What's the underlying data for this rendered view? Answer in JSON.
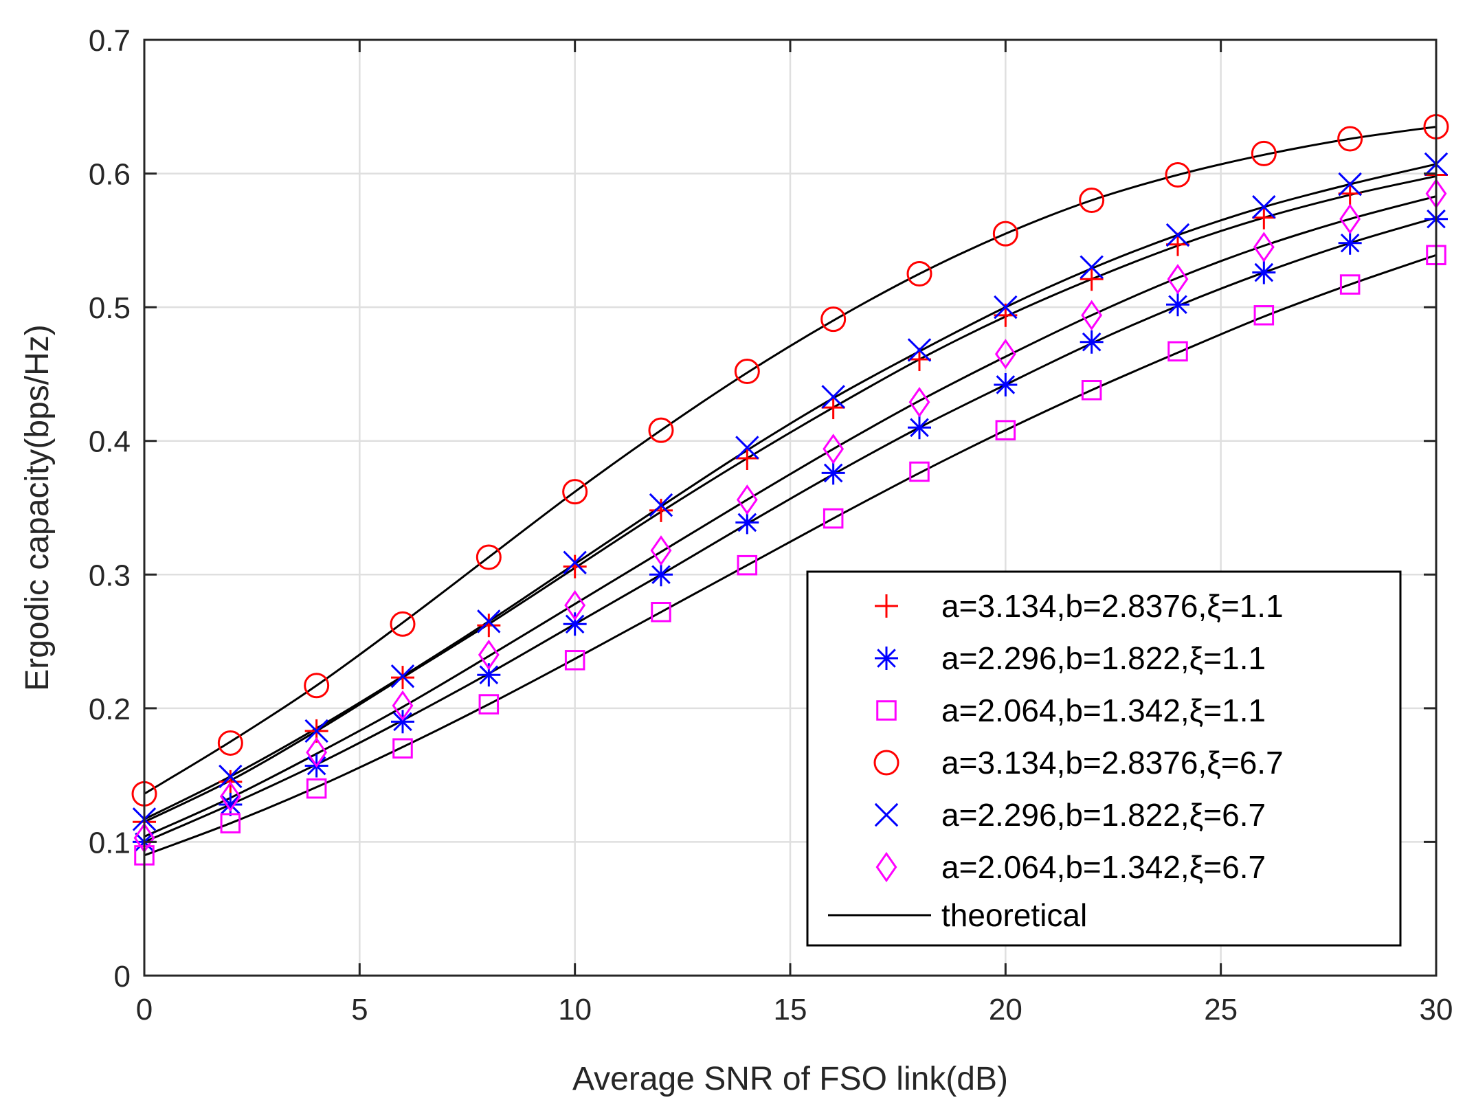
{
  "chart_data": {
    "type": "line",
    "xlabel": "Average SNR of FSO link(dB)",
    "ylabel": "Ergodic capacity(bps/Hz)",
    "xlim": [
      0,
      30
    ],
    "ylim": [
      0,
      0.7
    ],
    "xticks": [
      0,
      5,
      10,
      15,
      20,
      25,
      30
    ],
    "xtick_labels": [
      "0",
      "5",
      "10",
      "15",
      "20",
      "25",
      "30"
    ],
    "yticks": [
      0,
      0.1,
      0.2,
      0.3,
      0.4,
      0.5,
      0.6,
      0.7
    ],
    "ytick_labels": [
      "0",
      "0.1",
      "0.2",
      "0.3",
      "0.4",
      "0.5",
      "0.6",
      "0.7"
    ],
    "grid": true,
    "legend_position": "bottom-right",
    "x": [
      0,
      2,
      4,
      6,
      8,
      10,
      12,
      14,
      16,
      18,
      20,
      22,
      24,
      26,
      28,
      30
    ],
    "series": [
      {
        "name": "a=3.134,b=2.8376,ξ=1.1",
        "marker": "plus",
        "color": "#ff0000",
        "values": [
          0.115,
          0.145,
          0.183,
          0.223,
          0.262,
          0.306,
          0.348,
          0.387,
          0.425,
          0.461,
          0.494,
          0.521,
          0.547,
          0.567,
          0.585,
          0.599
        ]
      },
      {
        "name": "a=2.296,b=1.822,ξ=1.1",
        "marker": "asterisk",
        "color": "#0000ff",
        "values": [
          0.1,
          0.128,
          0.157,
          0.19,
          0.225,
          0.263,
          0.3,
          0.339,
          0.376,
          0.41,
          0.442,
          0.474,
          0.502,
          0.526,
          0.548,
          0.566
        ]
      },
      {
        "name": "a=2.064,b=1.342,ξ=1.1",
        "marker": "square",
        "color": "#ff00ff",
        "values": [
          0.09,
          0.114,
          0.14,
          0.17,
          0.203,
          0.236,
          0.272,
          0.307,
          0.342,
          0.377,
          0.408,
          0.438,
          0.467,
          0.494,
          0.517,
          0.539
        ]
      },
      {
        "name": "a=3.134,b=2.8376,ξ=6.7",
        "marker": "circle",
        "color": "#ff0000",
        "values": [
          0.136,
          0.174,
          0.217,
          0.263,
          0.313,
          0.362,
          0.408,
          0.452,
          0.491,
          0.525,
          0.555,
          0.58,
          0.599,
          0.615,
          0.626,
          0.635
        ]
      },
      {
        "name": "a=2.296,b=1.822,ξ=6.7",
        "marker": "cross",
        "color": "#0000ff",
        "values": [
          0.117,
          0.149,
          0.183,
          0.224,
          0.265,
          0.309,
          0.352,
          0.395,
          0.433,
          0.468,
          0.5,
          0.53,
          0.554,
          0.575,
          0.592,
          0.607
        ]
      },
      {
        "name": "a=2.064,b=1.342,ξ=6.7",
        "marker": "diamond",
        "color": "#ff00ff",
        "values": [
          0.103,
          0.134,
          0.167,
          0.202,
          0.24,
          0.277,
          0.318,
          0.356,
          0.394,
          0.429,
          0.465,
          0.494,
          0.521,
          0.545,
          0.566,
          0.585
        ]
      }
    ],
    "theoretical": {
      "name": "theoretical",
      "color": "#000000",
      "curves": [
        [
          0.115,
          0.146,
          0.183,
          0.223,
          0.263,
          0.305,
          0.347,
          0.387,
          0.425,
          0.461,
          0.493,
          0.521,
          0.546,
          0.567,
          0.584,
          0.598
        ],
        [
          0.1,
          0.128,
          0.158,
          0.191,
          0.226,
          0.263,
          0.3,
          0.338,
          0.375,
          0.41,
          0.442,
          0.473,
          0.501,
          0.526,
          0.548,
          0.567
        ],
        [
          0.09,
          0.114,
          0.141,
          0.171,
          0.203,
          0.237,
          0.272,
          0.307,
          0.342,
          0.376,
          0.408,
          0.438,
          0.466,
          0.493,
          0.517,
          0.539
        ],
        [
          0.136,
          0.175,
          0.217,
          0.264,
          0.313,
          0.362,
          0.408,
          0.451,
          0.49,
          0.525,
          0.555,
          0.58,
          0.599,
          0.614,
          0.626,
          0.635
        ],
        [
          0.117,
          0.149,
          0.185,
          0.224,
          0.265,
          0.308,
          0.351,
          0.393,
          0.432,
          0.467,
          0.5,
          0.529,
          0.554,
          0.575,
          0.592,
          0.607
        ],
        [
          0.104,
          0.133,
          0.166,
          0.201,
          0.239,
          0.278,
          0.317,
          0.356,
          0.394,
          0.43,
          0.463,
          0.494,
          0.522,
          0.546,
          0.566,
          0.583
        ]
      ]
    }
  }
}
